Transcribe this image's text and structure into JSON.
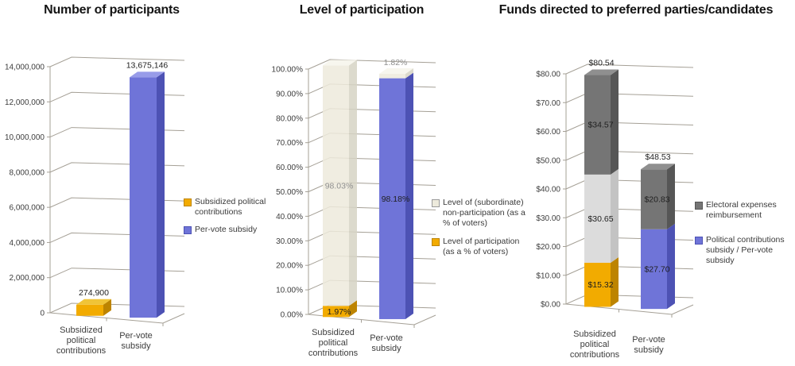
{
  "page": {
    "background": "#ffffff",
    "grid_color": "#a5a096"
  },
  "palette": {
    "gold": {
      "front": "#f2ab00",
      "top": "#f0c437",
      "side": "#bd8400"
    },
    "blue": {
      "front": "#6f74d8",
      "top": "#989ce9",
      "side": "#4d52b4"
    },
    "beige": {
      "front": "#edeadc",
      "top": "#f6f4eb",
      "side": "#d6d3c4"
    },
    "lightgray": {
      "front": "#dcdcdc",
      "top": "#ebebeb",
      "side": "#c3c3c3"
    },
    "darkgray": {
      "front": "#757575",
      "top": "#8f8f8f",
      "side": "#565656"
    }
  },
  "chart_data": [
    {
      "type": "bar",
      "variant": "3d-column",
      "title": "Number of participants",
      "categories": [
        "Subsidized political contributions",
        "Per-vote subsidy"
      ],
      "category_labels": [
        "Subsidized\npolitical\ncontributions",
        "Per-vote\nsubsidy"
      ],
      "axis": {
        "min": 0,
        "max": 14000000,
        "step": 2000000,
        "format": "number"
      },
      "ylim": [
        0,
        14000000
      ],
      "grid": true,
      "legend_position": "right",
      "bars": [
        {
          "category": "Subsidized political contributions",
          "total_label": "274,900",
          "segments": [
            {
              "series": "Subsidized political contributions",
              "value": 274900,
              "color": "gold"
            }
          ]
        },
        {
          "category": "Per-vote subsidy",
          "total_label": "13,675,146",
          "segments": [
            {
              "series": "Per-vote subsidy",
              "value": 13675146,
              "color": "blue"
            }
          ]
        }
      ],
      "legend": [
        {
          "label": "Subsidized political\ncontributions",
          "color": "gold"
        },
        {
          "label": "Per-vote subsidy",
          "color": "blue"
        }
      ]
    },
    {
      "type": "bar",
      "variant": "3d-stacked-column",
      "title": "Level of participation",
      "categories": [
        "Subsidized political contributions",
        "Per-vote subsidy"
      ],
      "category_labels": [
        "Subsidized\npolitical\ncontributions",
        "Per-vote\nsubsidy"
      ],
      "axis": {
        "min": 0,
        "max": 100,
        "step": 10,
        "format": "percent"
      },
      "ylim": [
        0,
        100
      ],
      "grid": true,
      "legend_position": "right",
      "bars": [
        {
          "category": "Subsidized political contributions",
          "segments": [
            {
              "series": "Level of participation (as a % of voters)",
              "value": 1.97,
              "color": "gold",
              "label": "1.97%",
              "label_color": "#1f1f1f"
            },
            {
              "series": "Level of (subordinate) non-participation (as a % of voters)",
              "value": 98.03,
              "color": "beige",
              "label": "98.03%",
              "label_color": "#8f8f8f"
            }
          ]
        },
        {
          "category": "Per-vote subsidy",
          "segments": [
            {
              "series": "Level of participation (as a % of voters)",
              "value": 98.18,
              "color": "blue",
              "label": "98.18%",
              "label_color": "#1f1f1f"
            },
            {
              "series": "Level of (subordinate) non-participation (as a % of voters)",
              "value": 1.82,
              "color": "beige",
              "label": "1.82%",
              "label_color": "#8f8f8f"
            }
          ]
        }
      ],
      "legend": [
        {
          "label": "Level of (subordinate)\nnon-participation (as a\n% of voters)",
          "color": "beige"
        },
        {
          "label": "Level of participation\n(as a % of voters)",
          "color": "gold"
        }
      ]
    },
    {
      "type": "bar",
      "variant": "3d-stacked-column",
      "title": "Funds directed to preferred parties/candidates",
      "categories": [
        "Subsidized political contributions",
        "Per-vote subsidy"
      ],
      "category_labels": [
        "Subsidized\npolitical\ncontributions",
        "Per-vote\nsubsidy"
      ],
      "axis": {
        "min": 0,
        "max": 80,
        "step": 10,
        "format": "currency"
      },
      "ylim": [
        0,
        80
      ],
      "grid": true,
      "legend_position": "right",
      "bars": [
        {
          "category": "Subsidized political contributions",
          "total_label": "$80.54",
          "segments": [
            {
              "series": "Political contributions subsidy / Per-vote subsidy",
              "value": 15.32,
              "color": "gold",
              "label": "$15.32",
              "label_color": "#1f1f1f"
            },
            {
              "value": 30.65,
              "color": "lightgray",
              "label": "$30.65",
              "label_color": "#1f1f1f"
            },
            {
              "series": "Electoral expenses reimbursement",
              "value": 34.57,
              "color": "darkgray",
              "label": "$34.57",
              "label_color": "#1f1f1f"
            }
          ]
        },
        {
          "category": "Per-vote subsidy",
          "total_label": "$48.53",
          "segments": [
            {
              "series": "Political contributions subsidy / Per-vote subsidy",
              "value": 27.7,
              "color": "blue",
              "label": "$27.70",
              "label_color": "#1f1f1f"
            },
            {
              "series": "Electoral expenses reimbursement",
              "value": 20.83,
              "color": "darkgray",
              "label": "$20.83",
              "label_color": "#1f1f1f"
            }
          ]
        }
      ],
      "legend": [
        {
          "label": "Electoral expenses\nreimbursement",
          "color": "darkgray"
        },
        {
          "label": "Political contributions\nsubsidy / Per-vote\nsubsidy",
          "color": "blue"
        }
      ]
    }
  ]
}
